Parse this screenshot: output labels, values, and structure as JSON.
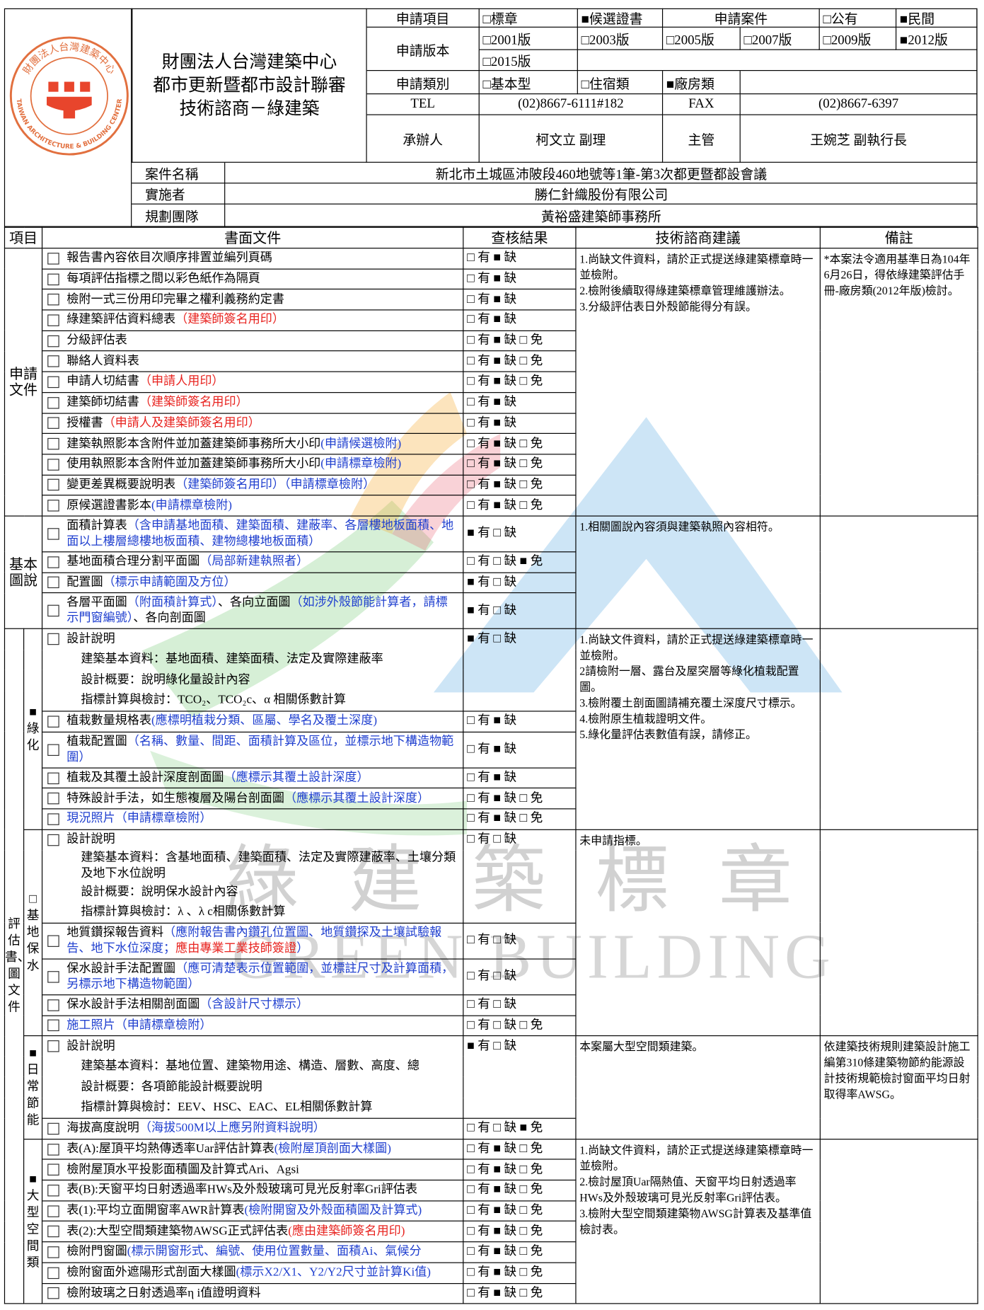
{
  "header": {
    "logo": {
      "name_zh": "財團法人台灣建築中心",
      "name_en": "TAIWAN ARCHITECTURE & BUILDING CENTER"
    },
    "org": [
      "財團法人台灣建築中心",
      "都市更新暨都市設計聯審",
      "技術諮商－綠建築"
    ],
    "form": {
      "item_label": "申請項目",
      "item_options": [
        "□標章",
        "■候選證書"
      ],
      "case_label": "申請案件",
      "case_options": [
        "□公有",
        "■民間"
      ],
      "version_label": "申請版本",
      "versions": [
        "□2001版",
        "□2003版",
        "□2005版",
        "□2007版",
        "□2009版",
        "■2012版",
        "□2015版"
      ],
      "category_label": "申請類別",
      "categories": [
        "□基本型",
        "□住宿類",
        "■廠房類"
      ],
      "tel_label": "TEL",
      "tel": "(02)8667-6111#182",
      "fax_label": "FAX",
      "fax": "(02)8667-6397",
      "handler_label": "承辦人",
      "handler": "柯文立 副理",
      "supervisor_label": "主管",
      "supervisor": "王婉芝 副執行長"
    },
    "case": [
      {
        "label": "案件名稱",
        "value": "新北市土城區沛陂段460地號等1筆-第3次都更暨都設會議"
      },
      {
        "label": "實施者",
        "value": "勝仁針織股份有限公司"
      },
      {
        "label": "規劃團隊",
        "value": "黃裕盛建築師事務所"
      }
    ]
  },
  "columns": [
    "項目",
    "書面文件",
    "查核結果",
    "技術諮商建議",
    "備註"
  ],
  "sections": [
    {
      "label": "申請文件",
      "rows": [
        {
          "item": [
            "報告書內容依目次順序排置並編列頁碼"
          ],
          "result": "□ 有 ■ 缺"
        },
        {
          "item": [
            "每項評估指標之間以彩色紙作為隔頁"
          ],
          "result": "□ 有 ■ 缺"
        },
        {
          "item": [
            "檢附一式三份用印完畢之權利義務約定書"
          ],
          "result": "□ 有 ■ 缺"
        },
        {
          "item": [
            " 綠建築評估資料總表",
            {
              "text": "（建築師簽名用印）",
              "color": "red"
            }
          ],
          "result": "□ 有 ■ 缺"
        },
        {
          "item": [
            "分級評估表"
          ],
          "result": "□ 有 ■ 缺 □ 免"
        },
        {
          "item": [
            "聯絡人資料表"
          ],
          "result": "□ 有 ■ 缺 □ 免"
        },
        {
          "item": [
            "申請人切結書",
            {
              "text": "（申請人用印）",
              "color": "red"
            }
          ],
          "result": "□ 有 ■ 缺 □ 免"
        },
        {
          "item": [
            "建築師切結書",
            {
              "text": "（建築師簽名用印）",
              "color": "red"
            }
          ],
          "result": "□ 有 ■ 缺"
        },
        {
          "item": [
            "授權書",
            {
              "text": "（申請人及建築師簽名用印）",
              "color": "red"
            }
          ],
          "result": "□ 有 ■ 缺"
        },
        {
          "item": [
            "建築執照影本含附件並加蓋建築師事務所大小印",
            {
              "text": "(申請候選檢附)",
              "color": "blue"
            }
          ],
          "result": "□ 有 ■ 缺 □ 免"
        },
        {
          "item": [
            "使用執照影本含附件並加蓋建築師事務所大小印",
            {
              "text": "(申請標章檢附)",
              "color": "blue"
            }
          ],
          "result": "□ 有 ■ 缺 □ 免"
        },
        {
          "item": [
            "變更差異概要說明表",
            {
              "text": "（建築師簽名用印）（申請標章檢附）",
              "color": "blue"
            }
          ],
          "result": "□ 有 ■ 缺 □ 免"
        },
        {
          "item": [
            "原候選證書影本",
            {
              "text": "(申請標章檢附)",
              "color": "blue"
            }
          ],
          "result": "□ 有 ■ 缺 □ 免"
        }
      ],
      "advice": [
        "1.尚缺文件資料，請於正式提送綠建築標章時一並檢附。",
        "2.檢附後續取得綠建築標章管理維護辦法。",
        "3.分級評估表日外殼節能得分有誤。"
      ],
      "remarks": [
        "*本案法令適用基準日為104年6月26日，得依綠建築評估手冊-廠房類(2012年版)檢討。"
      ]
    },
    {
      "label": "基本圖說",
      "rows": [
        {
          "item": [
            "面積計算表",
            {
              "text": "（含申請基地面積、建築面積、建蔽率、各層樓地板面積、地面以上樓層總樓地板面積、建物總樓地板面積）",
              "color": "blue"
            }
          ],
          "result": "■ 有 □ 缺"
        },
        {
          "item": [
            "基地面積合理分割平面圖",
            {
              "text": "（局部新建執照者）",
              "color": "blue"
            }
          ],
          "result": "□ 有 □ 缺 ■ 免"
        },
        {
          "item": [
            "配置圖",
            {
              "text": "（標示申請範圍及方位）",
              "color": "blue"
            }
          ],
          "result": "■ 有 □ 缺"
        },
        {
          "item": [
            "各層平面圖",
            {
              "text": "（附面積計算式）",
              "color": "blue"
            },
            "、各向立面圖",
            {
              "text": "（如涉外殼節能計算者，請標示門窗編號）",
              "color": "blue"
            },
            "、各向剖面圖"
          ],
          "result": "■ 有 □ 缺"
        }
      ],
      "advice": [
        "1.相關圖說內容須與建築執照內容相符。"
      ],
      "remarks": []
    },
    {
      "label": "評估書、圖文件",
      "groups": [
        {
          "mark": "■",
          "label": "綠化",
          "rows": [
            {
              "item": [
                "設計說明"
              ],
              "result": "■ 有 □ 缺"
            },
            {
              "detail": "建築基本資料：基地面積、建築面積、法定及實際建蔽率"
            },
            {
              "detail": "設計概要：說明綠化量設計內容"
            },
            {
              "detail": "指標計算與檢討：TCO₂、TCO₂c、α 相關係數計算"
            },
            {
              "item": [
                "植栽數量規格表",
                {
                  "text": "(應標明植栽分類、區屬、學名及覆土深度)",
                  "color": "blue"
                }
              ],
              "result": "□ 有 ■ 缺"
            },
            {
              "item": [
                "植栽配置圖",
                {
                  "text": "（名稱、數量、間距、面積計算及區位，並標示地下構造物範圍）",
                  "color": "blue"
                }
              ],
              "result": "□ 有 ■ 缺"
            },
            {
              "item": [
                "植栽及其覆土設計深度剖面圖",
                {
                  "text": "（應標示其覆土設計深度）",
                  "color": "blue"
                }
              ],
              "result": "□ 有 ■ 缺"
            },
            {
              "item": [
                "特殊設計手法，如生態複層及陽台剖面圖",
                {
                  "text": "（應標示其覆土設計深度）",
                  "color": "blue"
                }
              ],
              "result": "□ 有 ■ 缺 □ 免"
            },
            {
              "item": [
                {
                  "text": "現況照片（申請標章檢附）",
                  "color": "blue"
                }
              ],
              "result": "□ 有 ■ 缺 □ 免"
            }
          ],
          "advice": [
            "1.尚缺文件資料，請於正式提送綠建築標章時一並檢附。",
            "2請檢附一層、露台及屋突層等綠化植栽配置圖。",
            "3.檢附覆土剖面圖請補充覆土深度尺寸標示。",
            "4.檢附原生植栽證明文件。",
            "5.綠化量評估表數值有誤，請修正。"
          ],
          "remarks": []
        },
        {
          "mark": "□",
          "label": "基地保水",
          "rows": [
            {
              "item": [
                "設計說明"
              ],
              "result": "□ 有 □ 缺"
            },
            {
              "detail": "建築基本資料：含基地面積、建築面積、法定及實際建蔽率、土壤分類及地下水位說明"
            },
            {
              "detail": "設計概要：說明保水設計內容"
            },
            {
              "detail": "指標計算與檢討：λ 、λ c相關係數計算"
            },
            {
              "item": [
                "地質鑽探報告資料",
                {
                  "text": "（應附報告書內鑽孔位置圖、地質鑽探及土壤試驗報告、地下水位深度；",
                  "color": "blue"
                },
                {
                  "text": "應由專業工業技師簽證",
                  "color": "red"
                },
                {
                  "text": "）",
                  "color": "blue"
                }
              ],
              "result": "□ 有 □ 缺"
            },
            {
              "item": [
                "保水設計手法配置圖",
                {
                  "text": "（應可清楚表示位置範圍，並標註尺寸及計算面積，另標示地下構造物範圍）",
                  "color": "blue"
                }
              ],
              "result": "□ 有 □ 缺"
            },
            {
              "item": [
                "保水設計手法相關剖面圖",
                {
                  "text": "（含設計尺寸標示）",
                  "color": "blue"
                }
              ],
              "result": "□ 有 □ 缺"
            },
            {
              "item": [
                {
                  "text": "施工照片（申請標章檢附）",
                  "color": "blue"
                }
              ],
              "result": "□ 有 □ 缺 □ 免"
            }
          ],
          "advice": [
            "未申請指標。"
          ],
          "remarks": []
        },
        {
          "mark": "■",
          "label": "日常節能",
          "rows": [
            {
              "item": [
                "設計說明"
              ],
              "result": "■ 有 □ 缺"
            },
            {
              "detail": "建築基本資料：基地位置、建築物用途、構造、層數、高度、總"
            },
            {
              "detail": "設計概要：各項節能設計概要說明"
            },
            {
              "detail": "指標計算與檢討：EEV、HSC、EAC、EL相關係數計算"
            },
            {
              "item": [
                "海拔高度說明",
                {
                  "text": "（海拔500M以上應另附資料說明）",
                  "color": "blue"
                }
              ],
              "result": "□ 有 □ 缺 ■ 免"
            }
          ],
          "advice": [
            "本案屬大型空間類建築。"
          ],
          "remarks": [
            "依建築技術規則建築設計施工編第310條建築物節約能源設計技術規範檢討窗面平均日射取得率AWSG。"
          ]
        },
        {
          "mark": "■",
          "label": "大型空間類",
          "rows": [
            {
              "item": [
                "表(A):屋頂平均熱傳透率Uar評估計算表",
                {
                  "text": "(檢附屋頂剖面大樣圖)",
                  "color": "blue"
                }
              ],
              "result": "□ 有 ■ 缺 □ 免"
            },
            {
              "item": [
                "檢附屋頂水平投影面積圖及計算式Ari、Agsi"
              ],
              "result": "□ 有 ■ 缺 □ 免"
            },
            {
              "item": [
                "表(B):天窗平均日射透過率HWs及外殼玻璃可見光反射率Gri評估表"
              ],
              "result": "□ 有 ■ 缺 □ 免"
            },
            {
              "item": [
                "表(1):平均立面開窗率AWR計算表",
                {
                  "text": "(檢附開窗及外殼面積圖及計算式)",
                  "color": "blue"
                }
              ],
              "result": "□ 有 ■ 缺 □ 免"
            },
            {
              "item": [
                "表(2):大型空間類建築物AWSG正式評估表",
                {
                  "text": "(應由建築師簽名用印)",
                  "color": "red"
                }
              ],
              "result": "□ 有 ■ 缺 □ 免"
            },
            {
              "item": [
                "檢附門窗圖",
                {
                  "text": "(標示開窗形式、編號、使用位置數量、面積Ai、氣候分",
                  "color": "blue"
                }
              ],
              "result": "□ 有 ■ 缺 □ 免"
            },
            {
              "item": [
                "檢附窗面外遮陽形式剖面大樣圖",
                {
                  "text": "(標示X2/X1、Y2/Y2尺寸並計算Ki值)",
                  "color": "blue"
                }
              ],
              "result": "□ 有 ■ 缺 □ 免"
            },
            {
              "item": [
                "檢附玻璃之日射透過率η i值證明資料"
              ],
              "result": "□ 有 ■ 缺 □ 免"
            }
          ],
          "advice": [
            "1.尚缺文件資料，請於正式提送綠建築標章時一並檢附。",
            "2.檢討屋頂Uar隔熱值、天窗平均日射透過率HWs及外殼玻璃可見光反射率Gri評估表。",
            "3.檢附大型空間類建築物AWSG計算表及基準值檢討表。"
          ],
          "remarks": []
        }
      ]
    }
  ],
  "watermark": {
    "text": "綠建築標章",
    "subtext": "GREEN BUILDING"
  }
}
